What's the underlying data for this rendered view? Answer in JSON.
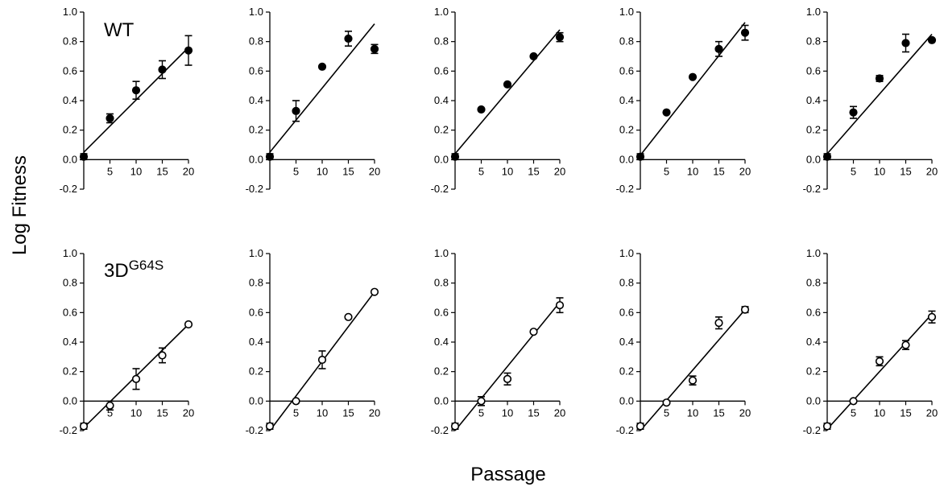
{
  "figure": {
    "ylabel": "Log Fitness",
    "xlabel": "Passage",
    "row_labels": [
      {
        "main": "WT",
        "sup": ""
      },
      {
        "main": "3D",
        "sup": "G64S"
      }
    ]
  },
  "chart_data": [
    {
      "type": "scatter",
      "row": 1,
      "col": 1,
      "marker": "filled",
      "xlim": [
        0,
        20
      ],
      "ylim": [
        -0.2,
        1.0
      ],
      "xticks": [
        "5",
        "10",
        "15",
        "20"
      ],
      "yticks": [
        "-0.2",
        "0.0",
        "0.2",
        "0.4",
        "0.6",
        "0.8",
        "1.0"
      ],
      "x": [
        0,
        5,
        10,
        15,
        20
      ],
      "y": [
        0.02,
        0.28,
        0.47,
        0.61,
        0.74
      ],
      "err": [
        0.02,
        0.03,
        0.06,
        0.06,
        0.1
      ],
      "fit": {
        "x": [
          0,
          20
        ],
        "y": [
          0.05,
          0.76
        ]
      }
    },
    {
      "type": "scatter",
      "row": 1,
      "col": 2,
      "marker": "filled",
      "xlim": [
        0,
        20
      ],
      "ylim": [
        -0.2,
        1.0
      ],
      "xticks": [
        "5",
        "10",
        "15",
        "20"
      ],
      "yticks": [
        "-0.2",
        "0.0",
        "0.2",
        "0.4",
        "0.6",
        "0.8",
        "1.0"
      ],
      "x": [
        0,
        5,
        10,
        15,
        20
      ],
      "y": [
        0.02,
        0.33,
        0.63,
        0.82,
        0.75
      ],
      "err": [
        0.02,
        0.07,
        0,
        0.05,
        0.03
      ],
      "fit": {
        "x": [
          0,
          20
        ],
        "y": [
          0.05,
          0.92
        ]
      }
    },
    {
      "type": "scatter",
      "row": 1,
      "col": 3,
      "marker": "filled",
      "xlim": [
        0,
        20
      ],
      "ylim": [
        -0.2,
        1.0
      ],
      "xticks": [
        "5",
        "10",
        "15",
        "20"
      ],
      "yticks": [
        "-0.2",
        "0.0",
        "0.2",
        "0.4",
        "0.6",
        "0.8",
        "1.0"
      ],
      "x": [
        0,
        5,
        10,
        15,
        20
      ],
      "y": [
        0.02,
        0.34,
        0.51,
        0.7,
        0.83
      ],
      "err": [
        0.02,
        0,
        0,
        0,
        0.03
      ],
      "fit": {
        "x": [
          0,
          20
        ],
        "y": [
          0.04,
          0.88
        ]
      }
    },
    {
      "type": "scatter",
      "row": 1,
      "col": 4,
      "marker": "filled",
      "xlim": [
        0,
        20
      ],
      "ylim": [
        -0.2,
        1.0
      ],
      "xticks": [
        "5",
        "10",
        "15",
        "20"
      ],
      "yticks": [
        "-0.2",
        "0.0",
        "0.2",
        "0.4",
        "0.6",
        "0.8",
        "1.0"
      ],
      "x": [
        0,
        5,
        10,
        15,
        20
      ],
      "y": [
        0.02,
        0.32,
        0.56,
        0.75,
        0.86
      ],
      "err": [
        0.02,
        0,
        0,
        0.05,
        0.05
      ],
      "fit": {
        "x": [
          0,
          20
        ],
        "y": [
          0.03,
          0.93
        ]
      }
    },
    {
      "type": "scatter",
      "row": 1,
      "col": 5,
      "marker": "filled",
      "xlim": [
        0,
        20
      ],
      "ylim": [
        -0.2,
        1.0
      ],
      "xticks": [
        "5",
        "10",
        "15",
        "20"
      ],
      "yticks": [
        "-0.2",
        "0.0",
        "0.2",
        "0.4",
        "0.6",
        "0.8",
        "1.0"
      ],
      "x": [
        0,
        5,
        10,
        15,
        20
      ],
      "y": [
        0.02,
        0.32,
        0.55,
        0.79,
        0.81
      ],
      "err": [
        0.02,
        0.04,
        0.02,
        0.06,
        0
      ],
      "fit": {
        "x": [
          0,
          20
        ],
        "y": [
          0.04,
          0.85
        ]
      }
    },
    {
      "type": "scatter",
      "row": 2,
      "col": 1,
      "marker": "open",
      "xlim": [
        0,
        20
      ],
      "ylim": [
        -0.2,
        1.0
      ],
      "xticks": [
        "5",
        "10",
        "15",
        "20"
      ],
      "yticks": [
        "-0.2",
        "0.0",
        "0.2",
        "0.4",
        "0.6",
        "0.8",
        "1.0"
      ],
      "x": [
        0,
        5,
        10,
        15,
        20
      ],
      "y": [
        -0.17,
        -0.03,
        0.15,
        0.31,
        0.52
      ],
      "err": [
        0.02,
        0.03,
        0.07,
        0.05,
        0
      ],
      "fit": {
        "x": [
          0,
          20
        ],
        "y": [
          -0.18,
          0.52
        ]
      }
    },
    {
      "type": "scatter",
      "row": 2,
      "col": 2,
      "marker": "open",
      "xlim": [
        0,
        20
      ],
      "ylim": [
        -0.2,
        1.0
      ],
      "xticks": [
        "5",
        "10",
        "15",
        "20"
      ],
      "yticks": [
        "-0.2",
        "0.0",
        "0.2",
        "0.4",
        "0.6",
        "0.8",
        "1.0"
      ],
      "x": [
        0,
        5,
        10,
        15,
        20
      ],
      "y": [
        -0.17,
        0,
        0.28,
        0.57,
        0.74
      ],
      "err": [
        0.02,
        0,
        0.06,
        0,
        0
      ],
      "fit": {
        "x": [
          0,
          20
        ],
        "y": [
          -0.2,
          0.74
        ]
      }
    },
    {
      "type": "scatter",
      "row": 2,
      "col": 3,
      "marker": "open",
      "xlim": [
        0,
        20
      ],
      "ylim": [
        -0.2,
        1.0
      ],
      "xticks": [
        "5",
        "10",
        "15",
        "20"
      ],
      "yticks": [
        "-0.2",
        "0.0",
        "0.2",
        "0.4",
        "0.6",
        "0.8",
        "1.0"
      ],
      "x": [
        0,
        5,
        10,
        15,
        20
      ],
      "y": [
        -0.17,
        0,
        0.15,
        0.47,
        0.65
      ],
      "err": [
        0.02,
        0.03,
        0.04,
        0,
        0.05
      ],
      "fit": {
        "x": [
          0,
          20
        ],
        "y": [
          -0.2,
          0.67
        ]
      }
    },
    {
      "type": "scatter",
      "row": 2,
      "col": 4,
      "marker": "open",
      "xlim": [
        0,
        20
      ],
      "ylim": [
        -0.2,
        1.0
      ],
      "xticks": [
        "5",
        "10",
        "15",
        "20"
      ],
      "yticks": [
        "-0.2",
        "0.0",
        "0.2",
        "0.4",
        "0.6",
        "0.8",
        "1.0"
      ],
      "x": [
        0,
        5,
        10,
        15,
        20
      ],
      "y": [
        -0.17,
        -0.01,
        0.14,
        0.53,
        0.62
      ],
      "err": [
        0.02,
        0,
        0.03,
        0.04,
        0.02
      ],
      "fit": {
        "x": [
          0,
          20
        ],
        "y": [
          -0.2,
          0.62
        ]
      }
    },
    {
      "type": "scatter",
      "row": 2,
      "col": 5,
      "marker": "open",
      "xlim": [
        0,
        20
      ],
      "ylim": [
        -0.2,
        1.0
      ],
      "xticks": [
        "5",
        "10",
        "15",
        "20"
      ],
      "yticks": [
        "-0.2",
        "0.0",
        "0.2",
        "0.4",
        "0.6",
        "0.8",
        "1.0"
      ],
      "x": [
        0,
        5,
        10,
        15,
        20
      ],
      "y": [
        -0.17,
        0,
        0.27,
        0.38,
        0.57
      ],
      "err": [
        0.02,
        0,
        0.03,
        0.03,
        0.04
      ],
      "fit": {
        "x": [
          0,
          20
        ],
        "y": [
          -0.19,
          0.59
        ]
      }
    }
  ]
}
